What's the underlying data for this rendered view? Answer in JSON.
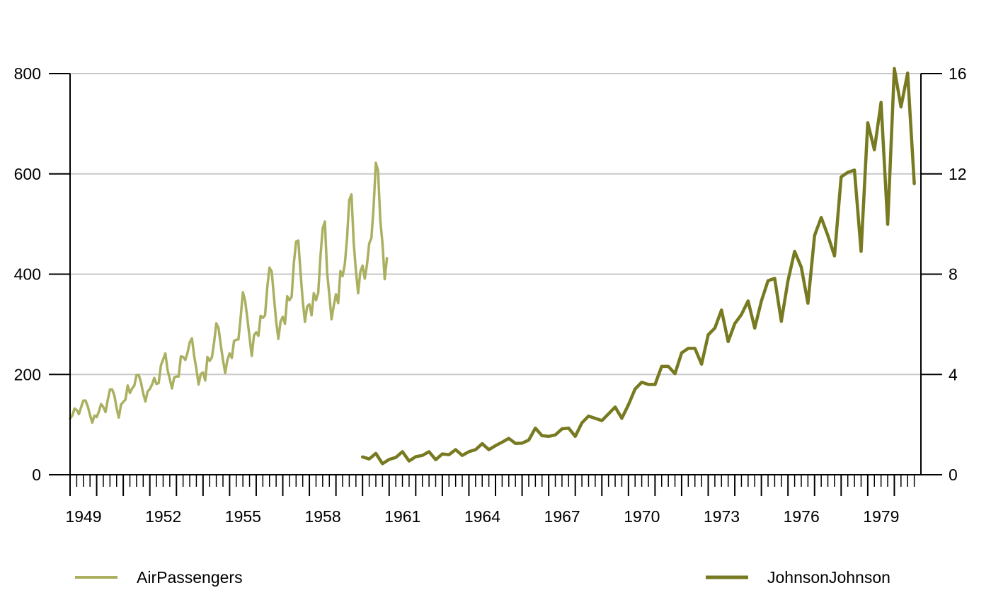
{
  "chart_data": {
    "type": "line",
    "title": "",
    "xlabel": "",
    "ylabel_left": "",
    "ylabel_right": "",
    "xlim": [
      1949,
      1981
    ],
    "ylim_left": [
      0,
      800
    ],
    "ylim_right": [
      0,
      16
    ],
    "x_ticks": [
      1949,
      1952,
      1955,
      1958,
      1961,
      1964,
      1967,
      1970,
      1973,
      1976,
      1979
    ],
    "y_ticks_left": [
      0,
      200,
      400,
      600,
      800
    ],
    "y_ticks_right": [
      0,
      4,
      8,
      12,
      16
    ],
    "grid": "horizontal",
    "legend_position": "bottom",
    "series": [
      {
        "name": "AirPassengers",
        "axis": "left",
        "color": "#aab060",
        "start": 1949,
        "frequency": 12,
        "values": [
          112,
          118,
          132,
          129,
          121,
          135,
          148,
          148,
          136,
          119,
          104,
          118,
          115,
          126,
          141,
          135,
          125,
          149,
          170,
          170,
          158,
          133,
          114,
          140,
          145,
          150,
          178,
          163,
          172,
          178,
          199,
          199,
          184,
          162,
          146,
          166,
          171,
          180,
          193,
          181,
          183,
          218,
          230,
          242,
          209,
          191,
          172,
          194,
          196,
          196,
          236,
          235,
          229,
          243,
          264,
          272,
          237,
          211,
          180,
          201,
          204,
          188,
          235,
          227,
          234,
          264,
          302,
          293,
          259,
          229,
          203,
          229,
          242,
          233,
          267,
          269,
          270,
          315,
          364,
          347,
          312,
          274,
          237,
          278,
          284,
          277,
          317,
          313,
          318,
          374,
          413,
          405,
          355,
          306,
          271,
          306,
          315,
          301,
          356,
          348,
          355,
          422,
          465,
          467,
          404,
          347,
          305,
          336,
          340,
          318,
          362,
          348,
          363,
          435,
          491,
          505,
          404,
          359,
          310,
          337,
          360,
          342,
          406,
          396,
          420,
          472,
          548,
          559,
          463,
          407,
          362,
          405,
          417,
          391,
          419,
          461,
          472,
          535,
          622,
          606,
          508,
          461,
          390,
          432
        ]
      },
      {
        "name": "JohnsonJohnson",
        "axis": "right",
        "color": "#777a20",
        "start": 1960,
        "frequency": 4,
        "values": [
          0.71,
          0.63,
          0.85,
          0.44,
          0.61,
          0.69,
          0.92,
          0.55,
          0.72,
          0.77,
          0.92,
          0.6,
          0.83,
          0.8,
          1.0,
          0.77,
          0.92,
          1.0,
          1.24,
          1.0,
          1.16,
          1.3,
          1.45,
          1.25,
          1.26,
          1.38,
          1.86,
          1.56,
          1.53,
          1.59,
          1.83,
          1.86,
          1.53,
          2.07,
          2.34,
          2.25,
          2.16,
          2.43,
          2.7,
          2.25,
          2.79,
          3.42,
          3.69,
          3.6,
          3.6,
          4.32,
          4.32,
          4.03,
          4.86,
          5.04,
          5.04,
          4.41,
          5.58,
          5.85,
          6.57,
          5.31,
          6.03,
          6.39,
          6.93,
          5.85,
          6.93,
          7.74,
          7.83,
          6.12,
          7.74,
          8.91,
          8.28,
          6.84,
          9.54,
          10.26,
          9.54,
          8.73,
          11.88,
          12.06,
          12.15,
          8.91,
          14.04,
          12.96,
          14.85,
          9.99,
          16.2,
          14.67,
          16.02,
          11.61
        ]
      }
    ]
  }
}
